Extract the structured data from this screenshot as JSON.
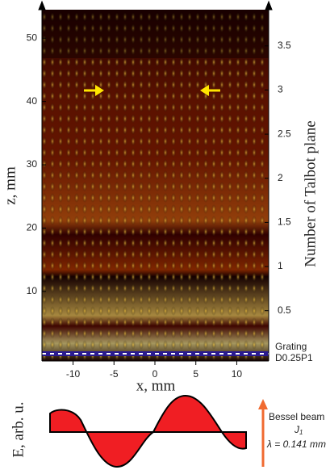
{
  "chart_data": {
    "type": "heatmap",
    "ylabel": "z, mm",
    "xlabel": "x, mm",
    "y2label": "Number of Talbot plane",
    "xlim": [
      -13.8,
      13.9
    ],
    "xticks": [
      -10,
      -5,
      0,
      5,
      10
    ],
    "ylim": [
      -1,
      54.5
    ],
    "yticks": [
      10,
      20,
      30,
      40,
      50
    ],
    "y2lim": [
      -0.07,
      3.91
    ],
    "y2ticks": [
      0.5,
      1,
      1.5,
      2,
      2.5,
      3,
      3.5
    ],
    "annotations": [
      "Grating",
      "D0.25P1"
    ]
  },
  "inset": {
    "ylabel": "E, arb. u.",
    "title": "Bessel beam",
    "function": "J",
    "subscript": "1",
    "wavelength_label": "λ = 0.141 mm"
  }
}
